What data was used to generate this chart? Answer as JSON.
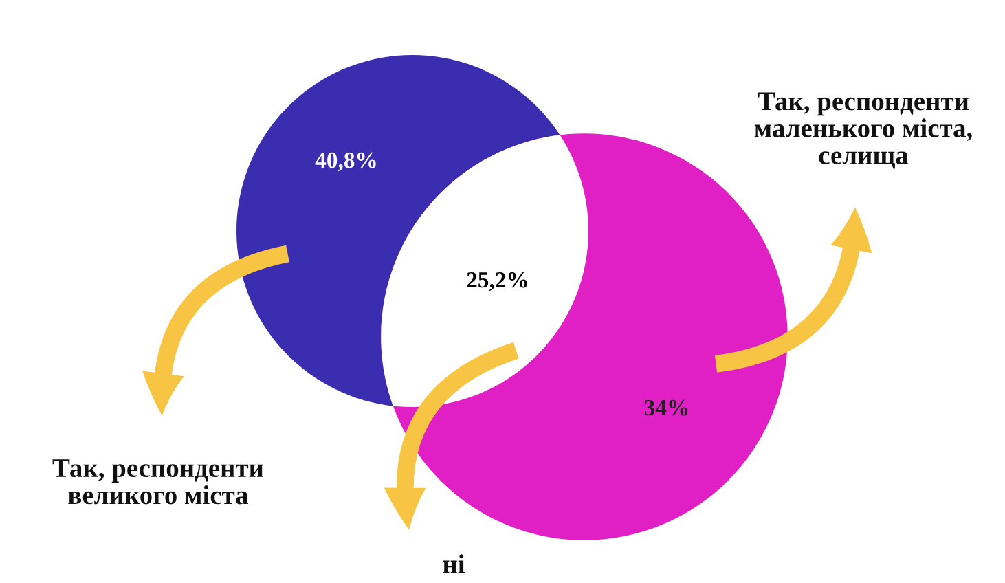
{
  "chart_data": {
    "type": "other",
    "categories": [
      null,
      null,
      null
    ],
    "values": [
      40.8,
      25.2,
      34
    ],
    "value_labels": [
      "40,8%",
      "25,2%",
      "34%"
    ],
    "colors": [
      "#3a2db0",
      "#ffffff",
      "#e020c4"
    ],
    "annotations": [
      "Так, респонденти\nвеликого міста",
      "ні",
      "Так, респонденти\nмаленького міста,\nселища"
    ]
  }
}
